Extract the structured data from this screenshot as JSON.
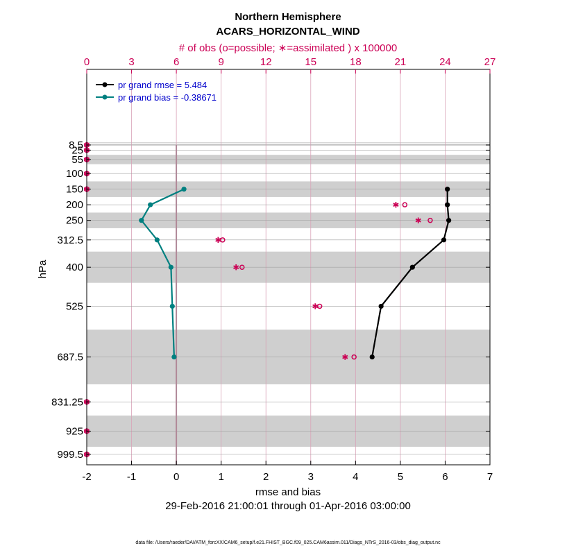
{
  "chart_data": {
    "type": "line",
    "title": "Northern Hemisphere",
    "subtitle": "ACARS_HORIZONTAL_WIND",
    "top_axis_label": "# of obs (o=possible; ∗=assimilated ) x 100000",
    "xlabel": "rmse and bias",
    "ylabel": "hPa",
    "date_range": "29-Feb-2016 21:00:01 through 01-Apr-2016 03:00:00",
    "footnote": "data file: /Users/raeder/DAI/ATM_forcXX/CAM6_setup/f.e21.FHIST_BGC.f09_025.CAM6assim.011/Diags_NTrS_2016-03/obs_diag_output.nc",
    "xlim": [
      -2,
      7
    ],
    "x_ticks": [
      "-2",
      "-1",
      "0",
      "1",
      "2",
      "3",
      "4",
      "5",
      "6",
      "7"
    ],
    "top_xlim": [
      0,
      27
    ],
    "top_ticks": [
      "0",
      "3",
      "6",
      "9",
      "12",
      "15",
      "18",
      "21",
      "24",
      "27"
    ],
    "y_levels": [
      8.5,
      25,
      55,
      100,
      150,
      200,
      250,
      312.5,
      400,
      525,
      687.5,
      831.25,
      925,
      999.5
    ],
    "y_tick_labels": [
      "8.5",
      "25",
      "55",
      "100",
      "150",
      "200",
      "250",
      "312.5",
      "400",
      "525",
      "687.5",
      "831.25",
      "925",
      "999.5"
    ],
    "shaded_layer_bounds_hPa": [
      [
        0,
        1
      ],
      [
        5,
        10
      ],
      [
        40,
        70
      ],
      [
        125,
        175
      ],
      [
        225,
        275
      ],
      [
        350,
        450
      ],
      [
        600,
        775
      ],
      [
        875,
        975
      ]
    ],
    "series": [
      {
        "name": "rmse",
        "legend": "pr grand rmse = 5.484",
        "color": "#000000",
        "levels": [
          150,
          200,
          250,
          312.5,
          400,
          525,
          687.5
        ],
        "values": [
          6.05,
          6.05,
          6.08,
          5.97,
          5.27,
          4.57,
          4.37
        ]
      },
      {
        "name": "bias",
        "legend": "pr grand bias = -0.38671",
        "color": "#008080",
        "levels": [
          150,
          200,
          250,
          312.5,
          400,
          525,
          687.5
        ],
        "values": [
          0.17,
          -0.58,
          -0.78,
          -0.43,
          -0.12,
          -0.09,
          -0.05
        ]
      }
    ],
    "obs_counts": {
      "scale": "x 100000",
      "levels": [
        8.5,
        25,
        55,
        100,
        150,
        200,
        250,
        312.5,
        400,
        525,
        687.5,
        831.25,
        925,
        999.5
      ],
      "possible": [
        0,
        0,
        0,
        0,
        0,
        21.3,
        23.0,
        9.1,
        10.4,
        15.6,
        17.9,
        0,
        0,
        0
      ],
      "assimilated": [
        0,
        0,
        0,
        0,
        0,
        20.7,
        22.2,
        8.8,
        10.0,
        15.3,
        17.3,
        0,
        0,
        0
      ]
    }
  }
}
